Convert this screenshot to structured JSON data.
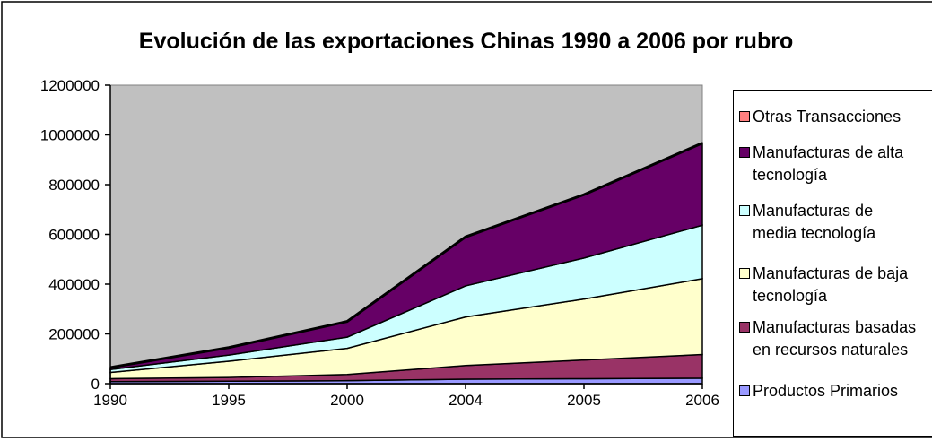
{
  "chart_data": {
    "type": "area",
    "stacked": true,
    "title": "Evolución de las exportaciones Chinas 1990 a 2006 por rubro",
    "xlabel": "",
    "ylabel": "",
    "categories": [
      "1990",
      "1995",
      "2000",
      "2004",
      "2005",
      "2006"
    ],
    "ylim": [
      0,
      1200000
    ],
    "yticks": [
      "0",
      "200000",
      "400000",
      "600000",
      "800000",
      "1000000",
      "1200000"
    ],
    "plot_background": "#c0c0c0",
    "grid": false,
    "legend_position": "right",
    "series": [
      {
        "name": "Productos Primarios",
        "color": "#9999ff",
        "values": [
          8000,
          10000,
          12000,
          18000,
          20000,
          22000
        ]
      },
      {
        "name": "Manufacturas basadas\nen recursos naturales",
        "color": "#993366",
        "values": [
          12000,
          15000,
          25000,
          55000,
          75000,
          95000
        ]
      },
      {
        "name": "Manufacturas de baja\ntecnología",
        "color": "#ffffcc",
        "values": [
          25000,
          65000,
          105000,
          195000,
          245000,
          305000
        ]
      },
      {
        "name": "Manufacturas de\nmedia tecnología",
        "color": "#ccffff",
        "values": [
          12000,
          25000,
          45000,
          125000,
          165000,
          215000
        ]
      },
      {
        "name": "Manufacturas de alta\ntecnología",
        "color": "#660066",
        "values": [
          8000,
          30000,
          63000,
          197000,
          255000,
          330000
        ]
      },
      {
        "name": "Otras Transacciones",
        "color": "#ff8080",
        "values": [
          0,
          0,
          0,
          0,
          0,
          0
        ]
      }
    ]
  }
}
